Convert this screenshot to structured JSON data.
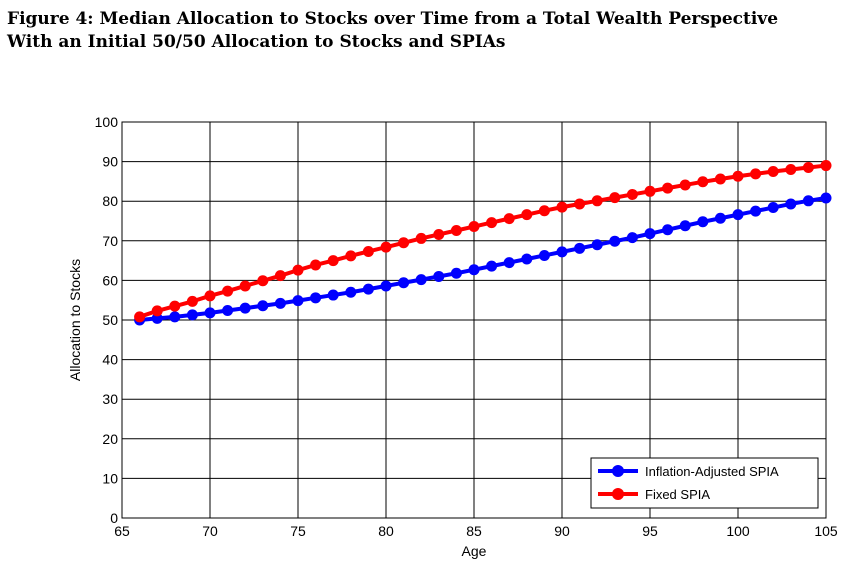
{
  "chart_data": {
    "type": "line",
    "title": "Figure 4: Median Allocation to Stocks over Time from a Total Wealth Perspective",
    "subtitle": "With an Initial 50/50 Allocation to Stocks and SPIAs",
    "xlabel": "Age",
    "ylabel": "Allocation to Stocks",
    "xlim": [
      65,
      105
    ],
    "ylim": [
      0,
      100
    ],
    "xticks": [
      65,
      70,
      75,
      80,
      85,
      90,
      95,
      100,
      105
    ],
    "yticks": [
      0,
      10,
      20,
      30,
      40,
      50,
      60,
      70,
      80,
      90,
      100
    ],
    "grid": true,
    "legend_position": "bottom-right",
    "x": [
      66,
      67,
      68,
      69,
      70,
      71,
      72,
      73,
      74,
      75,
      76,
      77,
      78,
      79,
      80,
      81,
      82,
      83,
      84,
      85,
      86,
      87,
      88,
      89,
      90,
      91,
      92,
      93,
      94,
      95,
      96,
      97,
      98,
      99,
      100,
      101,
      102,
      103,
      104,
      105
    ],
    "series": [
      {
        "name": "Inflation-Adjusted SPIA",
        "color": "#0000ff",
        "values": [
          50.0,
          50.4,
          50.8,
          51.3,
          51.8,
          52.4,
          53.0,
          53.6,
          54.2,
          54.9,
          55.6,
          56.3,
          57.0,
          57.8,
          58.6,
          59.4,
          60.2,
          61.0,
          61.8,
          62.7,
          63.6,
          64.5,
          65.4,
          66.3,
          67.2,
          68.1,
          69.0,
          69.9,
          70.8,
          71.8,
          72.8,
          73.8,
          74.8,
          75.7,
          76.6,
          77.5,
          78.4,
          79.3,
          80.1,
          80.8
        ]
      },
      {
        "name": "Fixed SPIA",
        "color": "#ff0000",
        "values": [
          50.8,
          52.3,
          53.5,
          54.7,
          56.1,
          57.3,
          58.6,
          59.9,
          61.2,
          62.6,
          63.9,
          65.0,
          66.2,
          67.3,
          68.4,
          69.5,
          70.6,
          71.6,
          72.6,
          73.6,
          74.6,
          75.6,
          76.6,
          77.6,
          78.5,
          79.3,
          80.1,
          80.9,
          81.7,
          82.5,
          83.3,
          84.1,
          84.9,
          85.6,
          86.3,
          86.9,
          87.5,
          88.0,
          88.5,
          89.0
        ]
      }
    ]
  }
}
